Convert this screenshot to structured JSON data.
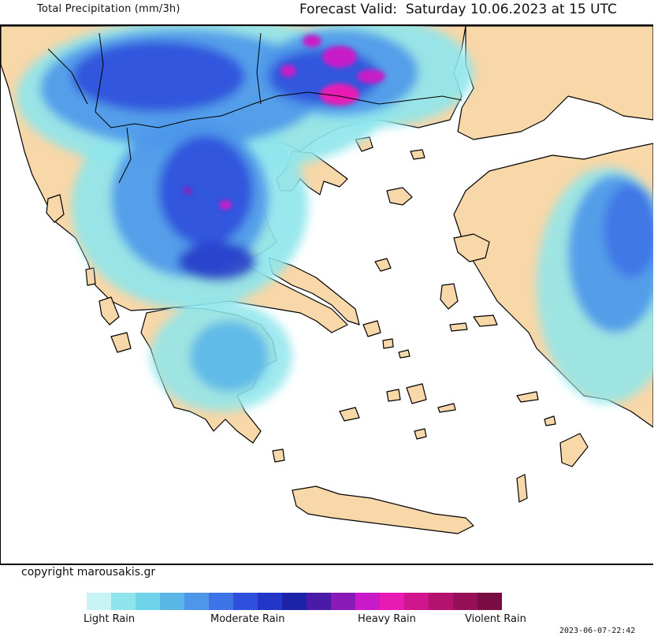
{
  "header": {
    "title": "Total Precipitation (mm/3h)",
    "forecast": "Forecast Valid:  Saturday 10.06.2023 at 15 UTC"
  },
  "footer": {
    "copyright": "copyright marousakis.gr",
    "timestamp": "2023-06-07-22:42"
  },
  "legend": {
    "labels": [
      "Light Rain",
      "Moderate Rain",
      "Heavy Rain",
      "Violent Rain"
    ],
    "colors": [
      "#c8f4f6",
      "#8ee6ec",
      "#6fd3ea",
      "#5bb6e8",
      "#4d96ea",
      "#3f74e6",
      "#2e50dc",
      "#2236c8",
      "#1c23a8",
      "#4b1aa8",
      "#8a1ab8",
      "#c81ac8",
      "#e81ab4",
      "#d0168c",
      "#b3126e",
      "#951058",
      "#7a0c44"
    ]
  },
  "map_colors": {
    "land": "#f8d7a8",
    "sea": "#ffffff",
    "border": "#000000"
  }
}
